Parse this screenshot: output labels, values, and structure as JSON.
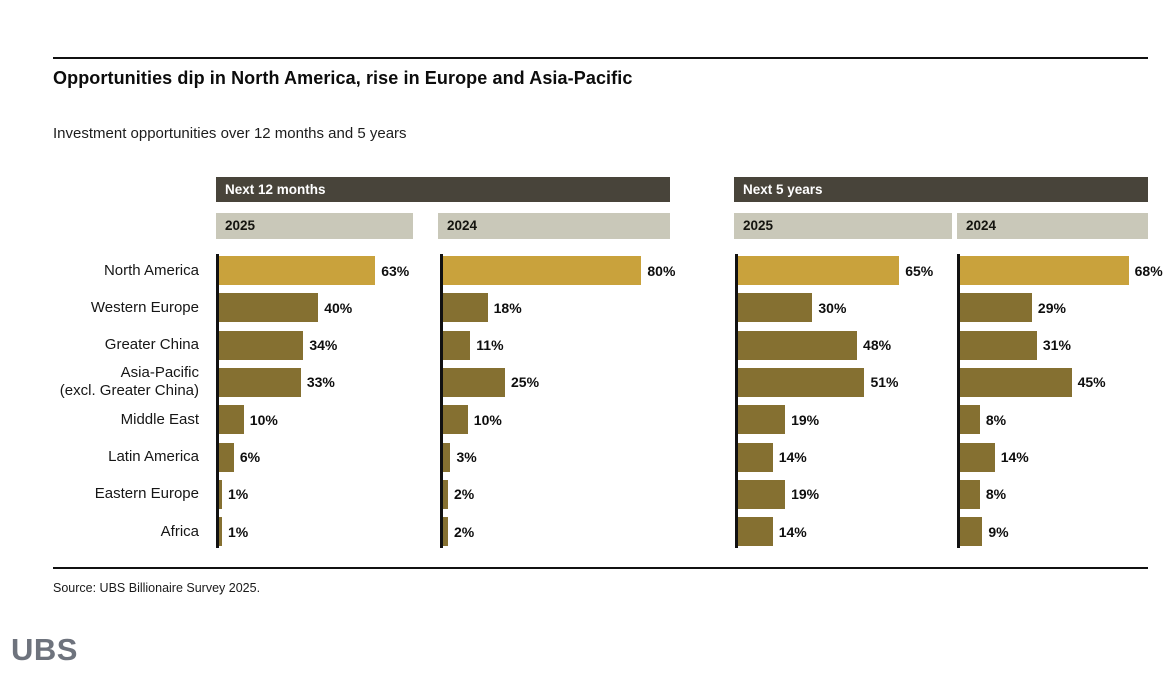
{
  "header": {
    "title": "Opportunities dip in North America, rise in Europe and Asia-Pacific",
    "subtitle": "Investment opportunities over 12 months and 5 years"
  },
  "chart_data": {
    "type": "bar",
    "orientation": "horizontal",
    "unit": "%",
    "value_range": [
      0,
      100
    ],
    "grid": false,
    "categories": [
      "North America",
      "Western Europe",
      "Greater China",
      "Asia-Pacific\n(excl. Greater China)",
      "Middle East",
      "Latin America",
      "Eastern Europe",
      "Africa"
    ],
    "highlight_category": "North America",
    "panels": [
      {
        "label": "Next 12 months",
        "series": [
          {
            "name": "2025",
            "values": [
              63,
              40,
              34,
              33,
              10,
              6,
              1,
              1
            ]
          },
          {
            "name": "2024",
            "values": [
              80,
              18,
              11,
              25,
              10,
              3,
              2,
              2
            ]
          }
        ]
      },
      {
        "label": "Next 5 years",
        "series": [
          {
            "name": "2025",
            "values": [
              65,
              30,
              48,
              51,
              19,
              14,
              19,
              14
            ]
          },
          {
            "name": "2024",
            "values": [
              68,
              29,
              31,
              45,
              8,
              14,
              8,
              9
            ]
          }
        ]
      }
    ],
    "colors": {
      "highlight_bar": "#c9a23c",
      "bar": "#857031",
      "panel_header_bg": "#48443a",
      "panel_header_text": "#ffffff",
      "year_header_bg": "#c9c8b9",
      "axis": "#111111"
    }
  },
  "footer": {
    "source": "Source: UBS Billionaire Survey 2025.",
    "logo": "UBS"
  }
}
